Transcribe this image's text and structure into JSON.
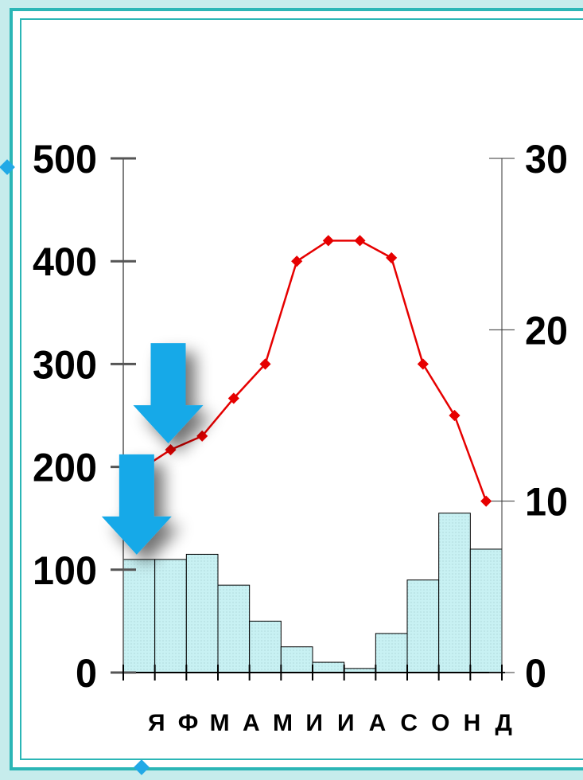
{
  "chart_data": {
    "type": "bar",
    "categories": [
      "Я",
      "Ф",
      "М",
      "А",
      "М",
      "И",
      "И",
      "А",
      "С",
      "О",
      "Н",
      "Д"
    ],
    "series": [
      {
        "axis": "left",
        "type": "bar",
        "values": [
          110,
          110,
          115,
          85,
          50,
          25,
          10,
          4,
          38,
          90,
          155,
          120
        ]
      },
      {
        "axis": "right",
        "type": "line",
        "values": [
          11.8,
          13.0,
          13.8,
          16.0,
          18.0,
          24.0,
          25.2,
          25.2,
          24.2,
          18.0,
          15.0,
          10.0
        ]
      }
    ],
    "y_left": {
      "min": 0,
      "max": 500,
      "ticks": [
        0,
        100,
        200,
        300,
        400,
        500
      ]
    },
    "y_right": {
      "min": 0,
      "max": 30,
      "ticks": [
        0,
        10,
        20,
        30
      ]
    },
    "colors": {
      "bar_fill": "#c8f1f3",
      "bar_stroke": "#000000",
      "line": "#e60000",
      "arrow": "#19a9e8"
    },
    "arrows": [
      {
        "month_index": 1,
        "target": "line"
      },
      {
        "month_index": 0,
        "target": "bar"
      }
    ]
  }
}
